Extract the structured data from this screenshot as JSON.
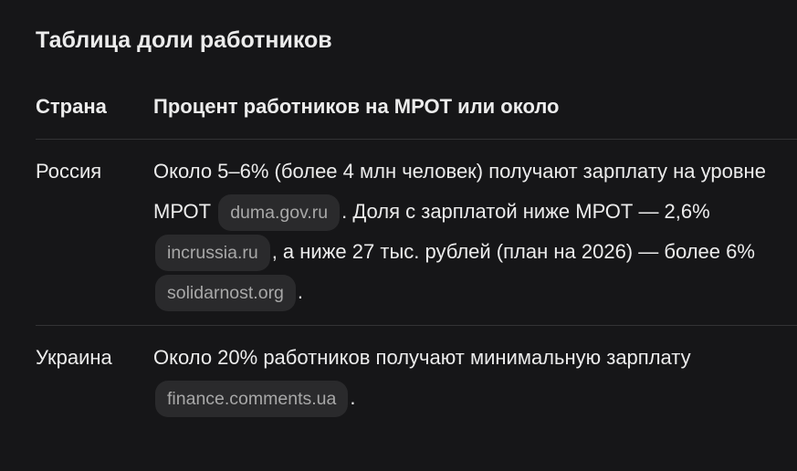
{
  "title": "Таблица доли работников",
  "table": {
    "headers": [
      "Страна",
      "Процент работников на МРОТ или около"
    ],
    "rows": [
      {
        "country": "Россия",
        "parts": [
          {
            "text": "Около 5–6% (более 4 млн человек) получают зарплату на уровне МРОТ "
          },
          {
            "chip": "duma.gov.ru"
          },
          {
            "text": ". Доля с зарплатой ниже МРОТ — 2,6% "
          },
          {
            "chip": "incrussia.ru"
          },
          {
            "text": ", а ниже 27 тыс. рублей (план на 2026) — более 6% "
          },
          {
            "chip": "solidarnost.org"
          },
          {
            "text": "."
          }
        ]
      },
      {
        "country": "Украина",
        "parts": [
          {
            "text": "Около 20% работников получают минимальную зарплату "
          },
          {
            "chip": "finance.comments.ua"
          },
          {
            "text": "."
          }
        ]
      }
    ]
  }
}
